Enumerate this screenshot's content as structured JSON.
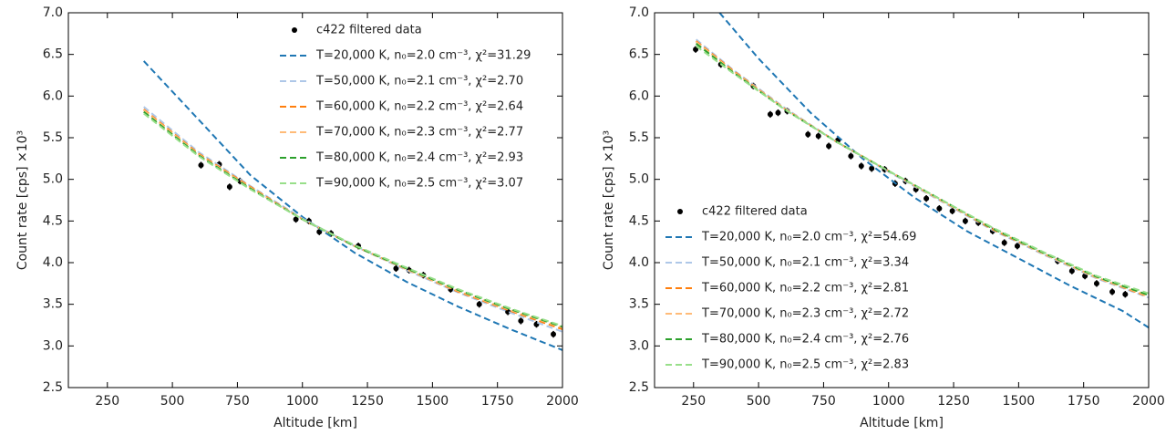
{
  "chart_data": [
    {
      "type": "line",
      "xlabel": "Altitude [km]",
      "ylabel": "Count rate [cps] ×10³",
      "xlim": [
        100,
        2000
      ],
      "xticks": [
        250,
        500,
        750,
        1000,
        1250,
        1500,
        1750,
        2000
      ],
      "ylim": [
        2.5,
        7
      ],
      "yticks": [
        2.5,
        {
          "value": 3,
          "label": "3.0"
        },
        3.5,
        {
          "value": 4,
          "label": "4.0"
        },
        4.5,
        {
          "value": 5,
          "label": "5.0"
        },
        5.5,
        {
          "value": 6,
          "label": "6.0"
        },
        6.5,
        {
          "value": 7,
          "label": "7.0"
        }
      ],
      "legend": "upper right",
      "series": [
        {
          "name": "c422 filtered data",
          "type": "errorbar",
          "color": "#000000",
          "x": [
            610,
            680,
            720,
            760,
            975,
            1025,
            1065,
            1110,
            1215,
            1360,
            1410,
            1465,
            1570,
            1680,
            1790,
            1840,
            1900,
            1965
          ],
          "values": [
            5.17,
            5.18,
            4.91,
            4.98,
            4.52,
            4.5,
            4.37,
            4.35,
            4.2,
            3.93,
            3.91,
            3.85,
            3.68,
            3.5,
            3.41,
            3.3,
            3.26,
            3.14
          ],
          "errors": [
            0.04,
            0.04,
            0.04,
            0.04,
            0.04,
            0.04,
            0.04,
            0.04,
            0.04,
            0.04,
            0.04,
            0.04,
            0.04,
            0.04,
            0.04,
            0.04,
            0.04,
            0.04
          ]
        },
        {
          "name": "T=20,000 K, n₀=2.0 cm⁻³, χ²=31.29",
          "type": "line",
          "color": "#1f77b4",
          "x": [
            390,
            600,
            800,
            1000,
            1200,
            1400,
            1600,
            1800,
            2000
          ],
          "values": [
            6.42,
            5.72,
            5.05,
            4.55,
            4.12,
            3.77,
            3.47,
            3.2,
            2.95
          ]
        },
        {
          "name": "T=50,000 K, n₀=2.1 cm⁻³, χ²=2.70",
          "type": "line",
          "color": "#aec7e8",
          "x": [
            390,
            600,
            800,
            1000,
            1200,
            1400,
            1600,
            1800,
            2000
          ],
          "values": [
            5.87,
            5.33,
            4.92,
            4.53,
            4.2,
            3.91,
            3.64,
            3.4,
            3.17
          ]
        },
        {
          "name": "T=60,000 K, n₀=2.2 cm⁻³, χ²=2.64",
          "type": "line",
          "color": "#ff7f0e",
          "x": [
            390,
            600,
            800,
            1000,
            1200,
            1400,
            1600,
            1800,
            2000
          ],
          "values": [
            5.84,
            5.31,
            4.91,
            4.52,
            4.2,
            3.92,
            3.65,
            3.42,
            3.2
          ]
        },
        {
          "name": "T=70,000 K, n₀=2.3 cm⁻³, χ²=2.77",
          "type": "line",
          "color": "#ffbb78",
          "x": [
            390,
            600,
            800,
            1000,
            1200,
            1400,
            1600,
            1800,
            2000
          ],
          "values": [
            5.83,
            5.3,
            4.9,
            4.52,
            4.2,
            3.92,
            3.66,
            3.43,
            3.22
          ]
        },
        {
          "name": "T=80,000 K, n₀=2.4 cm⁻³, χ²=2.93",
          "type": "line",
          "color": "#2ca02c",
          "x": [
            390,
            600,
            800,
            1000,
            1200,
            1400,
            1600,
            1800,
            2000
          ],
          "values": [
            5.81,
            5.29,
            4.89,
            4.52,
            4.2,
            3.93,
            3.67,
            3.44,
            3.23
          ]
        },
        {
          "name": "T=90,000 K, n₀=2.5 cm⁻³, χ²=3.07",
          "type": "line",
          "color": "#98df8a",
          "x": [
            390,
            600,
            800,
            1000,
            1200,
            1400,
            1600,
            1800,
            2000
          ],
          "values": [
            5.79,
            5.28,
            4.88,
            4.52,
            4.21,
            3.94,
            3.68,
            3.45,
            3.24
          ]
        }
      ]
    },
    {
      "type": "line",
      "xlabel": "Altitude [km]",
      "ylabel": "Count rate [cps] ×10³",
      "xlim": [
        100,
        2000
      ],
      "xticks": [
        250,
        500,
        750,
        1000,
        1250,
        1500,
        1750,
        2000
      ],
      "ylim": [
        2.5,
        7
      ],
      "yticks": [
        2.5,
        {
          "value": 3,
          "label": "3.0"
        },
        3.5,
        {
          "value": 4,
          "label": "4.0"
        },
        4.5,
        {
          "value": 5,
          "label": "5.0"
        },
        5.5,
        {
          "value": 6,
          "label": "6.0"
        },
        6.5,
        {
          "value": 7,
          "label": "7.0"
        }
      ],
      "legend": "lower left",
      "series": [
        {
          "name": "c422 filtered data",
          "type": "errorbar",
          "color": "#000000",
          "x": [
            258,
            355,
            480,
            545,
            575,
            610,
            690,
            730,
            770,
            805,
            855,
            895,
            935,
            985,
            1025,
            1065,
            1105,
            1145,
            1195,
            1245,
            1295,
            1345,
            1400,
            1445,
            1495,
            1650,
            1705,
            1755,
            1800,
            1860,
            1910
          ],
          "values": [
            6.56,
            6.38,
            6.12,
            5.78,
            5.8,
            5.82,
            5.54,
            5.52,
            5.4,
            5.47,
            5.28,
            5.16,
            5.13,
            5.12,
            4.95,
            4.98,
            4.88,
            4.77,
            4.65,
            4.62,
            4.5,
            4.48,
            4.38,
            4.24,
            4.2,
            4.02,
            3.9,
            3.84,
            3.75,
            3.65,
            3.62
          ],
          "errors": [
            0.04,
            0.04,
            0.04,
            0.04,
            0.04,
            0.04,
            0.04,
            0.04,
            0.04,
            0.04,
            0.04,
            0.04,
            0.04,
            0.04,
            0.04,
            0.04,
            0.04,
            0.04,
            0.04,
            0.04,
            0.04,
            0.04,
            0.04,
            0.04,
            0.04,
            0.04,
            0.04,
            0.04,
            0.04,
            0.04,
            0.04
          ]
        },
        {
          "name": "T=20,000 K, n₀=2.0 cm⁻³, χ²=54.69",
          "type": "line",
          "color": "#1f77b4",
          "x": [
            350,
            500,
            700,
            900,
            1100,
            1300,
            1500,
            1700,
            1900,
            2000
          ],
          "values": [
            7,
            6.45,
            5.8,
            5.25,
            4.78,
            4.38,
            4.05,
            3.72,
            3.42,
            3.22
          ]
        },
        {
          "name": "T=50,000 K, n₀=2.1 cm⁻³, χ²=3.34",
          "type": "line",
          "color": "#aec7e8",
          "x": [
            260,
            400,
            600,
            800,
            1000,
            1200,
            1400,
            1600,
            1800,
            2000
          ],
          "values": [
            6.68,
            6.32,
            5.86,
            5.45,
            5.09,
            4.74,
            4.39,
            4.09,
            3.81,
            3.58
          ]
        },
        {
          "name": "T=60,000 K, n₀=2.2 cm⁻³, χ²=2.81",
          "type": "line",
          "color": "#ff7f0e",
          "x": [
            260,
            400,
            600,
            800,
            1000,
            1200,
            1400,
            1600,
            1800,
            2000
          ],
          "values": [
            6.66,
            6.31,
            5.85,
            5.45,
            5.1,
            4.75,
            4.4,
            4.1,
            3.82,
            3.59
          ]
        },
        {
          "name": "T=70,000 K, n₀=2.3 cm⁻³, χ²=2.72",
          "type": "line",
          "color": "#ffbb78",
          "x": [
            260,
            400,
            600,
            800,
            1000,
            1200,
            1400,
            1600,
            1800,
            2000
          ],
          "values": [
            6.65,
            6.3,
            5.85,
            5.45,
            5.1,
            4.75,
            4.41,
            4.1,
            3.82,
            3.6
          ]
        },
        {
          "name": "T=80,000 K, n₀=2.4 cm⁻³, χ²=2.76",
          "type": "line",
          "color": "#2ca02c",
          "x": [
            260,
            400,
            600,
            800,
            1000,
            1200,
            1400,
            1600,
            1800,
            2000
          ],
          "values": [
            6.63,
            6.29,
            5.84,
            5.45,
            5.1,
            4.76,
            4.41,
            4.11,
            3.83,
            3.61
          ]
        },
        {
          "name": "T=90,000 K, n₀=2.5 cm⁻³, χ²=2.83",
          "type": "line",
          "color": "#98df8a",
          "x": [
            260,
            400,
            600,
            800,
            1000,
            1200,
            1400,
            1600,
            1800,
            2000
          ],
          "values": [
            6.6,
            6.28,
            5.84,
            5.45,
            5.1,
            4.76,
            4.42,
            4.12,
            3.84,
            3.63
          ]
        }
      ]
    }
  ]
}
